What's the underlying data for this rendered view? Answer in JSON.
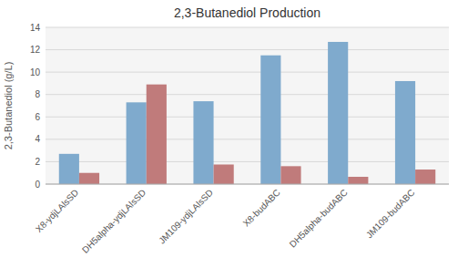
{
  "chart_data": {
    "type": "bar",
    "title": "2,3-Butanediol Production",
    "ylabel": "2,3-Butanediol (g/L)",
    "categories": [
      "X8-ydjLAlsSD",
      "DH5alpha-ydjLAlsSD",
      "JM109-ydjLAlsSD",
      "X8-budABC",
      "DH5alpha-budABC",
      "JM109-budABC"
    ],
    "series": [
      {
        "color": "#7faacd",
        "values": [
          2.7,
          7.3,
          7.4,
          11.5,
          12.7,
          9.2
        ]
      },
      {
        "color": "#c07b7b",
        "values": [
          1.0,
          8.9,
          1.75,
          1.6,
          0.65,
          1.3
        ]
      }
    ],
    "ylim": [
      0,
      14
    ],
    "yticks": [
      0,
      2,
      4,
      6,
      8,
      10,
      12,
      14
    ],
    "grid": true
  }
}
